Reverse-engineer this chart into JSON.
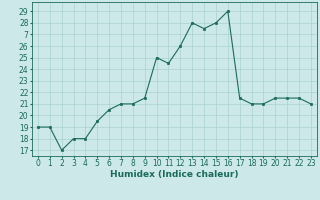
{
  "x": [
    0,
    1,
    2,
    3,
    4,
    5,
    6,
    7,
    8,
    9,
    10,
    11,
    12,
    13,
    14,
    15,
    16,
    17,
    18,
    19,
    20,
    21,
    22,
    23
  ],
  "y": [
    19,
    19,
    17,
    18,
    18,
    19.5,
    20.5,
    21,
    21,
    21.5,
    25,
    24.5,
    26,
    28,
    27.5,
    28,
    29,
    21.5,
    21,
    21,
    21.5,
    21.5,
    21.5,
    21
  ],
  "line_color": "#1a6b5a",
  "marker_color": "#1a6b5a",
  "bg_color": "#cce8e8",
  "grid_color": "#aad0d0",
  "xlabel": "Humidex (Indice chaleur)",
  "ylim": [
    16.5,
    29.8
  ],
  "xlim": [
    -0.5,
    23.5
  ],
  "yticks": [
    17,
    18,
    19,
    20,
    21,
    22,
    23,
    24,
    25,
    26,
    27,
    28,
    29
  ],
  "xticks": [
    0,
    1,
    2,
    3,
    4,
    5,
    6,
    7,
    8,
    9,
    10,
    11,
    12,
    13,
    14,
    15,
    16,
    17,
    18,
    19,
    20,
    21,
    22,
    23
  ],
  "label_fontsize": 6.5,
  "tick_fontsize": 5.5
}
